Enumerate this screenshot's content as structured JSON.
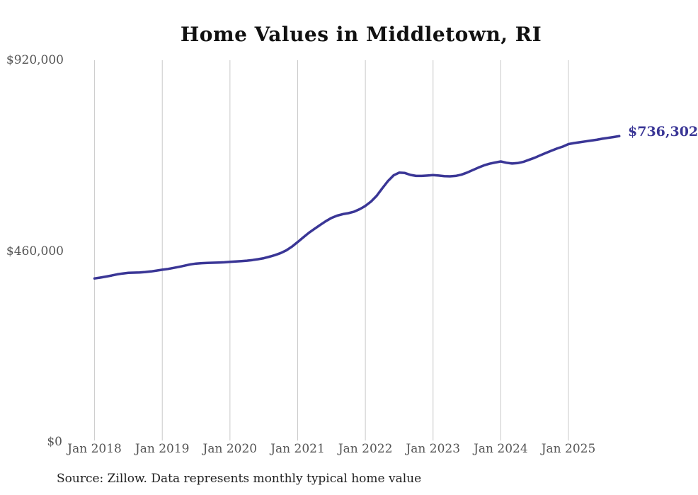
{
  "title": "Home Values in Middletown, RI",
  "end_label": "$736,302",
  "source_note": "Source: Zillow. Data represents monthly typical home value",
  "colors": {
    "line": "#3a3696",
    "grid": "#c9c9c9",
    "axis_text": "#555555",
    "title_text": "#111111",
    "source_text": "#222222"
  },
  "chart_data": {
    "type": "line",
    "title": "Home Values in Middletown, RI",
    "xlabel": "",
    "ylabel": "",
    "ylim": [
      0,
      920000
    ],
    "grid": "vertical-only",
    "legend": "none",
    "y_tick_labels": [
      "$0",
      "$460,000",
      "$920,000"
    ],
    "y_tick_values": [
      0,
      460000,
      920000
    ],
    "x_tick_labels": [
      "Jan 2018",
      "Jan 2019",
      "Jan 2020",
      "Jan 2021",
      "Jan 2022",
      "Jan 2023",
      "Jan 2024",
      "Jan 2025"
    ],
    "frequency": "monthly",
    "last_point": {
      "month": "2025-10",
      "value": 736302,
      "label": "$736,302"
    },
    "series": [
      {
        "name": "Typical home value",
        "months": [
          "2018-01",
          "2018-02",
          "2018-03",
          "2018-04",
          "2018-05",
          "2018-06",
          "2018-07",
          "2018-08",
          "2018-09",
          "2018-10",
          "2018-11",
          "2018-12",
          "2019-01",
          "2019-02",
          "2019-03",
          "2019-04",
          "2019-05",
          "2019-06",
          "2019-07",
          "2019-08",
          "2019-09",
          "2019-10",
          "2019-11",
          "2019-12",
          "2020-01",
          "2020-02",
          "2020-03",
          "2020-04",
          "2020-05",
          "2020-06",
          "2020-07",
          "2020-08",
          "2020-09",
          "2020-10",
          "2020-11",
          "2020-12",
          "2021-01",
          "2021-02",
          "2021-03",
          "2021-04",
          "2021-05",
          "2021-06",
          "2021-07",
          "2021-08",
          "2021-09",
          "2021-10",
          "2021-11",
          "2021-12",
          "2022-01",
          "2022-02",
          "2022-03",
          "2022-04",
          "2022-05",
          "2022-06",
          "2022-07",
          "2022-08",
          "2022-09",
          "2022-10",
          "2022-11",
          "2022-12",
          "2023-01",
          "2023-02",
          "2023-03",
          "2023-04",
          "2023-05",
          "2023-06",
          "2023-07",
          "2023-08",
          "2023-09",
          "2023-10",
          "2023-11",
          "2023-12",
          "2024-01",
          "2024-02",
          "2024-03",
          "2024-04",
          "2024-05",
          "2024-06",
          "2024-07",
          "2024-08",
          "2024-09",
          "2024-10",
          "2024-11",
          "2024-12",
          "2025-01",
          "2025-02",
          "2025-03",
          "2025-04",
          "2025-05",
          "2025-06",
          "2025-07",
          "2025-08",
          "2025-09",
          "2025-10"
        ],
        "values": [
          392000,
          394000,
          396500,
          399000,
          402000,
          404000,
          405500,
          406000,
          406500,
          407500,
          409000,
          411000,
          413000,
          415000,
          417500,
          420000,
          423000,
          426000,
          428000,
          429000,
          429500,
          430000,
          430500,
          431000,
          432000,
          433000,
          434000,
          435000,
          436500,
          438500,
          441000,
          444500,
          448500,
          453500,
          460000,
          469000,
          480000,
          491500,
          502500,
          512000,
          521500,
          530500,
          538500,
          544000,
          547500,
          550000,
          553500,
          559500,
          567500,
          578000,
          592000,
          610000,
          627500,
          641500,
          648000,
          647000,
          642500,
          640000,
          640000,
          641000,
          642000,
          641000,
          639500,
          639000,
          640000,
          643000,
          648000,
          654000,
          660000,
          665500,
          669500,
          672500,
          675000,
          672000,
          670000,
          671000,
          674000,
          679000,
          684000,
          690000,
          695500,
          701000,
          706500,
          711000,
          717000,
          719500,
          721500,
          723500,
          725500,
          727500,
          730000,
          732000,
          734200,
          736302
        ]
      }
    ]
  }
}
